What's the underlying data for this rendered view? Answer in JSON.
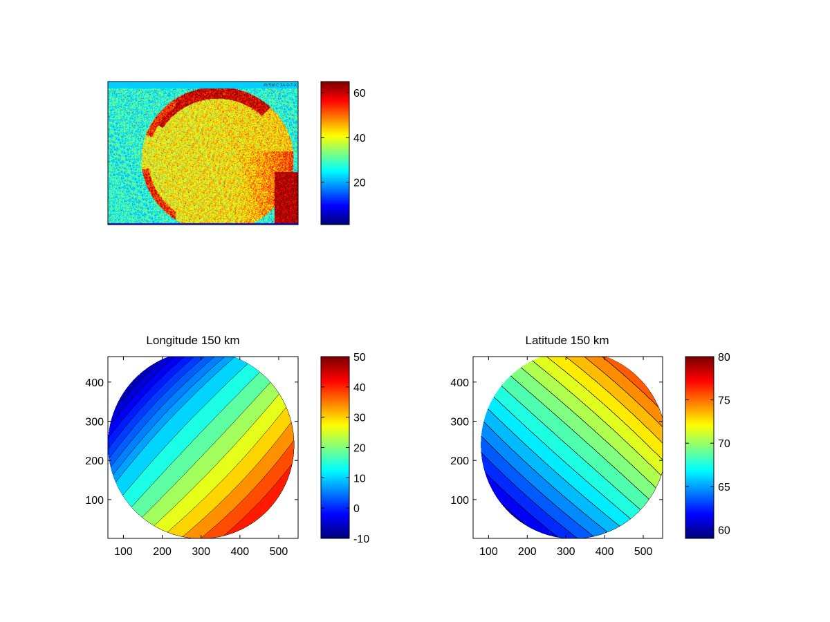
{
  "colormap": "jet",
  "chart_data": [
    {
      "type": "heatmap",
      "name": "top-image",
      "title": "",
      "xlabel": "",
      "ylabel": "",
      "axis_tick_labels": false,
      "description_values": "noisy intensity image of a disk, background about 25-30, disk interior about 40-45, bright limb about 60",
      "colorbar": {
        "range": [
          1,
          65
        ],
        "ticks": [
          20,
          40,
          60
        ],
        "tick_labels": [
          "20",
          "40",
          "60"
        ]
      },
      "header_text": "AVSM C 3A-0-7-X"
    },
    {
      "type": "heatmap",
      "name": "longitude-map",
      "title": "Longitude 150 km",
      "xlabel": "",
      "ylabel": "",
      "xlim": [
        60,
        550
      ],
      "ylim": [
        1,
        465
      ],
      "xticks": [
        100,
        200,
        300,
        400,
        500
      ],
      "xtick_labels": [
        "100",
        "200",
        "300",
        "400",
        "500"
      ],
      "yticks": [
        100,
        200,
        300,
        400
      ],
      "ytick_labels": [
        "100",
        "200",
        "300",
        "400"
      ],
      "disk": {
        "center": [
          300,
          240
        ],
        "radius": 240
      },
      "contour_levels": [
        -8,
        -6,
        -4,
        -2,
        0,
        2,
        4,
        6,
        8,
        12,
        16,
        20,
        24,
        28,
        32,
        36,
        40
      ],
      "field": {
        "mid_value": 18,
        "gradient_direction": "lower-right",
        "gradient_per_unit": 0.09,
        "curvature": 0.16
      },
      "colorbar": {
        "range": [
          -10,
          50
        ],
        "ticks": [
          -10,
          0,
          10,
          20,
          30,
          40,
          50
        ],
        "tick_labels": [
          "-10",
          "0",
          "10",
          "20",
          "30",
          "40",
          "50"
        ]
      }
    },
    {
      "type": "heatmap",
      "name": "latitude-map",
      "title": "Latitude 150 km",
      "xlabel": "",
      "ylabel": "",
      "xlim": [
        60,
        550
      ],
      "ylim": [
        1,
        465
      ],
      "xticks": [
        100,
        200,
        300,
        400,
        500
      ],
      "xtick_labels": [
        "100",
        "200",
        "300",
        "400",
        "500"
      ],
      "yticks": [
        100,
        200,
        300,
        400
      ],
      "ytick_labels": [
        "100",
        "200",
        "300",
        "400"
      ],
      "disk": {
        "center": [
          320,
          240
        ],
        "radius": 240
      },
      "contour_levels": [
        60,
        61,
        62,
        63,
        64,
        65,
        66,
        67,
        68,
        69,
        70,
        71,
        72,
        73,
        74,
        75,
        76,
        77,
        78,
        79
      ],
      "field": {
        "mid_value": 68.3,
        "gradient_direction": "upper-right",
        "gradient_per_unit": 0.026,
        "curvature": 0.09
      },
      "colorbar": {
        "range": [
          59,
          80
        ],
        "ticks": [
          60,
          65,
          70,
          75,
          80
        ],
        "tick_labels": [
          "60",
          "65",
          "70",
          "75",
          "80"
        ]
      }
    }
  ]
}
